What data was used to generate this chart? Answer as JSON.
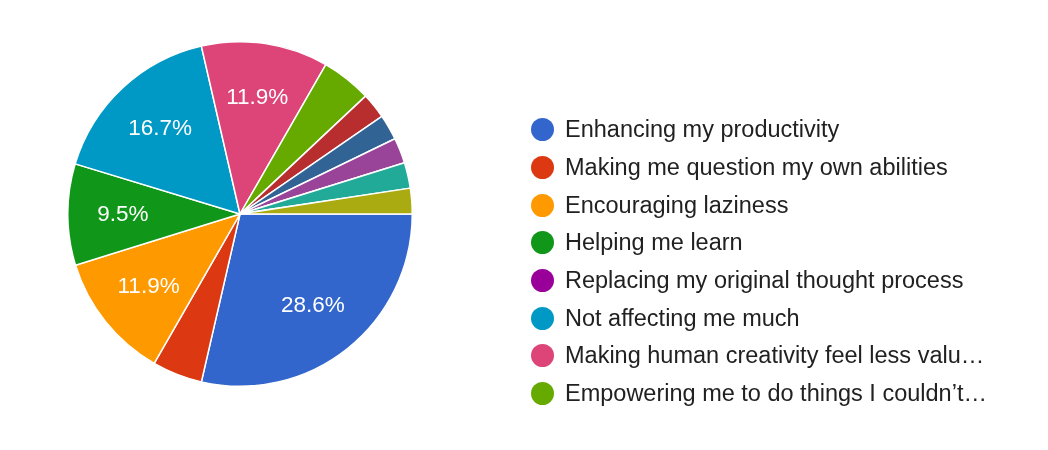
{
  "chart_data": {
    "type": "pie",
    "categories": [
      "Enhancing my productivity",
      "Making me question my own abilities",
      "Encouraging laziness",
      "Helping me learn",
      "Replacing my original thought process",
      "Not affecting me much",
      "Making human creativity feel less valu…",
      "Empowering me to do things I couldn’t…",
      null,
      null,
      null,
      null,
      null
    ],
    "values": [
      28.6,
      4.7,
      11.9,
      9.5,
      0,
      16.7,
      11.9,
      4.7,
      2.4,
      2.4,
      2.4,
      2.4,
      2.4
    ],
    "colors": [
      "#3366cc",
      "#dc3912",
      "#ff9900",
      "#109618",
      "#990099",
      "#0099c6",
      "#dd4477",
      "#66aa00",
      "#b82e2e",
      "#316395",
      "#994499",
      "#22aa99",
      "#aaaa11"
    ],
    "value_labels": [
      "28.6%",
      null,
      "11.9%",
      "9.5%",
      null,
      "16.7%",
      "11.9%",
      null,
      null,
      null,
      null,
      null,
      null
    ],
    "legend": "right"
  }
}
